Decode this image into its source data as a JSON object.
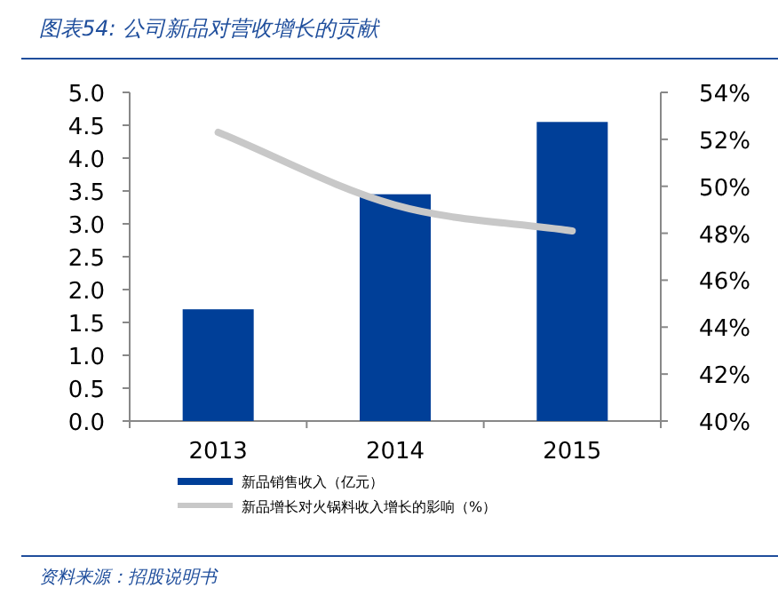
{
  "chart_data": {
    "type": "bar",
    "title": "图表54: 公司新品对营收增长的贡献",
    "categories": [
      "2013",
      "2014",
      "2015"
    ],
    "series": [
      {
        "name": "新品销售收入（亿元）",
        "color": "#003f98",
        "values": [
          1.7,
          3.45,
          4.55
        ]
      },
      {
        "name": "新品增长对火锅料收入增长的影响（%）",
        "type": "line",
        "axis": "y2",
        "color": "#c8c8c8",
        "values": [
          52.3,
          49.2,
          48.1
        ]
      }
    ],
    "ylim": [
      0,
      5
    ],
    "yticks": [
      {
        "value": 0,
        "label": "0.0"
      },
      {
        "value": 0.5,
        "label": "0.5"
      },
      {
        "value": 1,
        "label": "1.0"
      },
      {
        "value": 1.5,
        "label": "1.5"
      },
      {
        "value": 2,
        "label": "2.0"
      },
      {
        "value": 2.5,
        "label": "2.5"
      },
      {
        "value": 3,
        "label": "3.0"
      },
      {
        "value": 3.5,
        "label": "3.5"
      },
      {
        "value": 4,
        "label": "4.0"
      },
      {
        "value": 4.5,
        "label": "4.5"
      },
      {
        "value": 5,
        "label": "5.0"
      }
    ],
    "y2lim": [
      40,
      54
    ],
    "y2ticks": [
      {
        "value": 40,
        "label": "40%"
      },
      {
        "value": 42,
        "label": "42%"
      },
      {
        "value": 44,
        "label": "44%"
      },
      {
        "value": 46,
        "label": "46%"
      },
      {
        "value": 48,
        "label": "48%"
      },
      {
        "value": 50,
        "label": "50%"
      },
      {
        "value": 52,
        "label": "52%"
      },
      {
        "value": 54,
        "label": "54%"
      }
    ],
    "legend": "bottom",
    "grid": false,
    "annotations": [
      "资料来源：招股说明书"
    ]
  }
}
